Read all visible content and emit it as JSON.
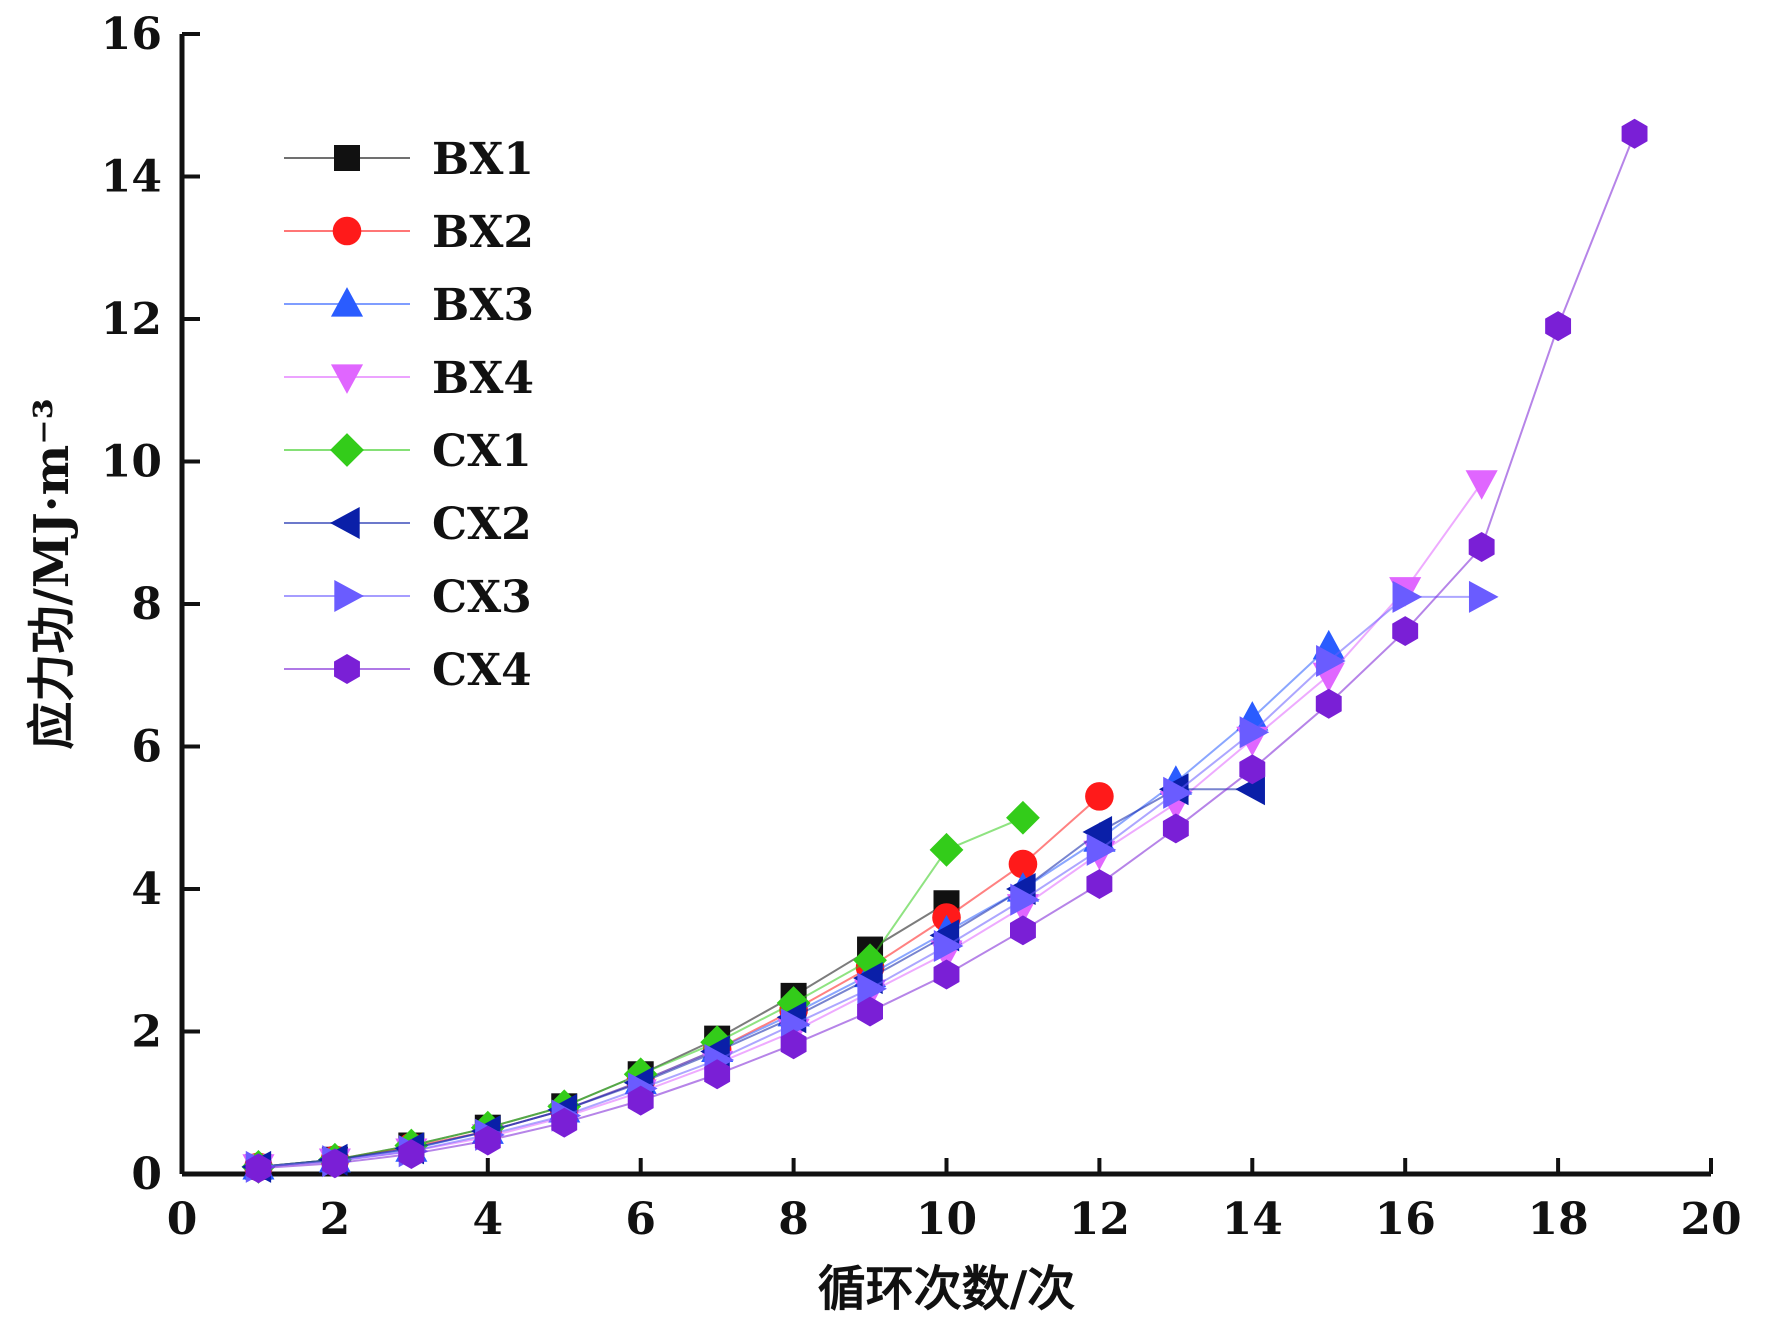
{
  "chart_data": {
    "type": "line",
    "xlabel": "循环次数/次",
    "ylabel": "应力功/MJ·m⁻³",
    "xlim": [
      0,
      20
    ],
    "ylim": [
      0,
      16
    ],
    "xticks": [
      "0",
      "2",
      "4",
      "6",
      "8",
      "10",
      "12",
      "14",
      "16",
      "18",
      "20"
    ],
    "yticks": [
      "0",
      "2",
      "4",
      "6",
      "8",
      "10",
      "12",
      "14",
      "16"
    ],
    "grid": false,
    "legend_position": "top-left",
    "series": [
      {
        "name": "BX1",
        "color": "#111111",
        "marker": "square",
        "x": [
          1,
          2,
          3,
          4,
          5,
          6,
          7,
          8,
          9,
          10
        ],
        "y": [
          0.1,
          0.2,
          0.4,
          0.65,
          0.95,
          1.4,
          1.9,
          2.5,
          3.15,
          3.8
        ]
      },
      {
        "name": "BX2",
        "color": "#ff1a1a",
        "marker": "circle",
        "x": [
          1,
          2,
          3,
          4,
          5,
          6,
          7,
          8,
          9,
          10,
          11,
          12
        ],
        "y": [
          0.1,
          0.2,
          0.38,
          0.6,
          0.9,
          1.3,
          1.75,
          2.3,
          2.9,
          3.6,
          4.35,
          5.3
        ]
      },
      {
        "name": "BX3",
        "color": "#2a5cff",
        "marker": "triangle-up",
        "x": [
          1,
          2,
          3,
          4,
          5,
          6,
          7,
          8,
          9,
          10,
          11,
          12,
          13,
          14,
          15
        ],
        "y": [
          0.1,
          0.2,
          0.35,
          0.6,
          0.9,
          1.3,
          1.75,
          2.25,
          2.8,
          3.4,
          4.0,
          4.7,
          5.5,
          6.4,
          7.4
        ]
      },
      {
        "name": "BX4",
        "color": "#e066ff",
        "marker": "triangle-down",
        "x": [
          1,
          2,
          3,
          4,
          5,
          6,
          7,
          8,
          9,
          10,
          11,
          12,
          13,
          14,
          15,
          16,
          17
        ],
        "y": [
          0.1,
          0.18,
          0.32,
          0.52,
          0.8,
          1.15,
          1.55,
          2.0,
          2.55,
          3.1,
          3.75,
          4.5,
          5.2,
          6.1,
          7.0,
          8.2,
          9.7
        ]
      },
      {
        "name": "CX1",
        "color": "#33cc1a",
        "marker": "diamond",
        "x": [
          1,
          2,
          3,
          4,
          5,
          6,
          7,
          8,
          9,
          10,
          11
        ],
        "y": [
          0.1,
          0.2,
          0.4,
          0.65,
          0.95,
          1.4,
          1.85,
          2.4,
          3.0,
          4.55,
          5.0
        ]
      },
      {
        "name": "CX2",
        "color": "#0a1fa8",
        "marker": "triangle-left",
        "x": [
          1,
          2,
          3,
          4,
          5,
          6,
          7,
          8,
          9,
          10,
          11,
          12,
          13,
          14
        ],
        "y": [
          0.1,
          0.2,
          0.36,
          0.6,
          0.9,
          1.28,
          1.72,
          2.2,
          2.75,
          3.35,
          4.0,
          4.8,
          5.4,
          5.4
        ]
      },
      {
        "name": "CX3",
        "color": "#6a5cff",
        "marker": "triangle-right",
        "x": [
          1,
          2,
          3,
          4,
          5,
          6,
          7,
          8,
          9,
          10,
          11,
          12,
          13,
          14,
          15,
          16,
          17
        ],
        "y": [
          0.1,
          0.18,
          0.32,
          0.55,
          0.82,
          1.2,
          1.6,
          2.1,
          2.6,
          3.2,
          3.85,
          4.55,
          5.35,
          6.2,
          7.2,
          8.1,
          8.1
        ]
      },
      {
        "name": "CX4",
        "color": "#7a1fd6",
        "marker": "hexagon",
        "x": [
          1,
          2,
          3,
          4,
          5,
          6,
          7,
          8,
          9,
          10,
          11,
          12,
          13,
          14,
          15,
          16,
          17,
          18,
          19
        ],
        "y": [
          0.08,
          0.15,
          0.28,
          0.47,
          0.72,
          1.03,
          1.4,
          1.82,
          2.28,
          2.8,
          3.42,
          4.07,
          4.85,
          5.68,
          6.6,
          7.62,
          8.8,
          11.9,
          14.6
        ]
      }
    ]
  }
}
